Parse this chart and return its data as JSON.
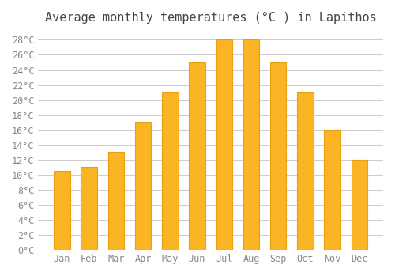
{
  "title": "Average monthly temperatures (°C ) in Lapithos",
  "months": [
    "Jan",
    "Feb",
    "Mar",
    "Apr",
    "May",
    "Jun",
    "Jul",
    "Aug",
    "Sep",
    "Oct",
    "Nov",
    "Dec"
  ],
  "values": [
    10.5,
    11.0,
    13.0,
    17.0,
    21.0,
    25.0,
    28.0,
    28.0,
    25.0,
    21.0,
    16.0,
    12.0
  ],
  "bar_color": "#FBB524",
  "bar_edge_color": "#E8A010",
  "background_color": "#FFFFFF",
  "grid_color": "#CCCCCC",
  "text_color": "#888888",
  "ylim": [
    0,
    29
  ],
  "yticks": [
    0,
    2,
    4,
    6,
    8,
    10,
    12,
    14,
    16,
    18,
    20,
    22,
    24,
    26,
    28
  ],
  "title_fontsize": 11,
  "tick_fontsize": 8.5
}
